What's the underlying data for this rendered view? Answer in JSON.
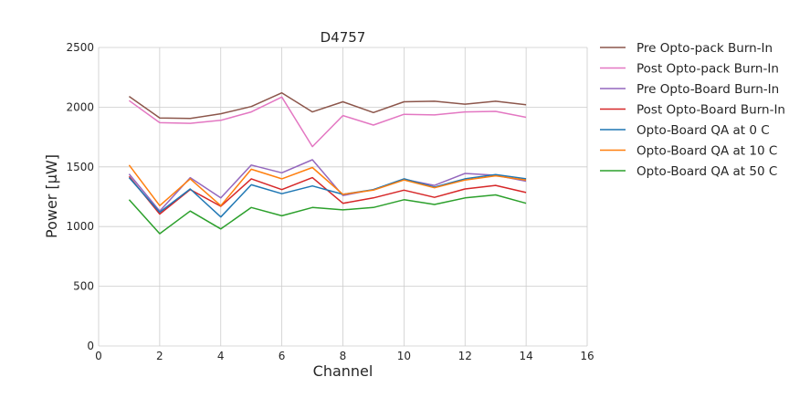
{
  "chart_data": {
    "type": "line",
    "title": "D4757",
    "xlabel": "Channel",
    "ylabel": "Power [μW]",
    "xlim": [
      0,
      16
    ],
    "ylim": [
      0,
      2500
    ],
    "xticks": [
      0,
      2,
      4,
      6,
      8,
      10,
      12,
      14,
      16
    ],
    "yticks": [
      0,
      500,
      1000,
      1500,
      2000,
      2500
    ],
    "grid": true,
    "legend_position": "outside-right",
    "x": [
      1,
      2,
      3,
      4,
      5,
      6,
      7,
      8,
      9,
      10,
      11,
      12,
      13,
      14
    ],
    "series": [
      {
        "name": "Pre Opto-pack Burn-In",
        "color": "#8c564b",
        "values": [
          2090,
          1910,
          1905,
          1945,
          2005,
          2120,
          1960,
          2045,
          1955,
          2045,
          2050,
          2025,
          2050,
          2020
        ]
      },
      {
        "name": "Post Opto-pack Burn-In",
        "color": "#e377c2",
        "values": [
          2055,
          1870,
          1865,
          1890,
          1960,
          2085,
          1670,
          1930,
          1850,
          1940,
          1935,
          1960,
          1965,
          1915
        ]
      },
      {
        "name": "Pre Opto-Board Burn-In",
        "color": "#9467bd",
        "values": [
          1440,
          1130,
          1410,
          1240,
          1515,
          1450,
          1560,
          1260,
          1310,
          1395,
          1345,
          1445,
          1430,
          1380
        ]
      },
      {
        "name": "Post Opto-Board Burn-In",
        "color": "#d62728",
        "values": [
          1420,
          1105,
          1310,
          1170,
          1400,
          1310,
          1410,
          1195,
          1240,
          1305,
          1245,
          1315,
          1345,
          1285
        ]
      },
      {
        "name": "Opto-Board QA at 0 C",
        "color": "#1f77b4",
        "values": [
          1410,
          1120,
          1315,
          1080,
          1350,
          1275,
          1340,
          1270,
          1310,
          1400,
          1330,
          1400,
          1435,
          1400
        ]
      },
      {
        "name": "Opto-Board QA at 10 C",
        "color": "#ff7f0e",
        "values": [
          1515,
          1175,
          1400,
          1175,
          1480,
          1400,
          1495,
          1270,
          1305,
          1390,
          1325,
          1390,
          1425,
          1390
        ]
      },
      {
        "name": "Opto-Board QA at 50 C",
        "color": "#2ca02c",
        "values": [
          1225,
          940,
          1130,
          980,
          1160,
          1090,
          1160,
          1140,
          1160,
          1225,
          1185,
          1240,
          1265,
          1195
        ]
      }
    ]
  }
}
